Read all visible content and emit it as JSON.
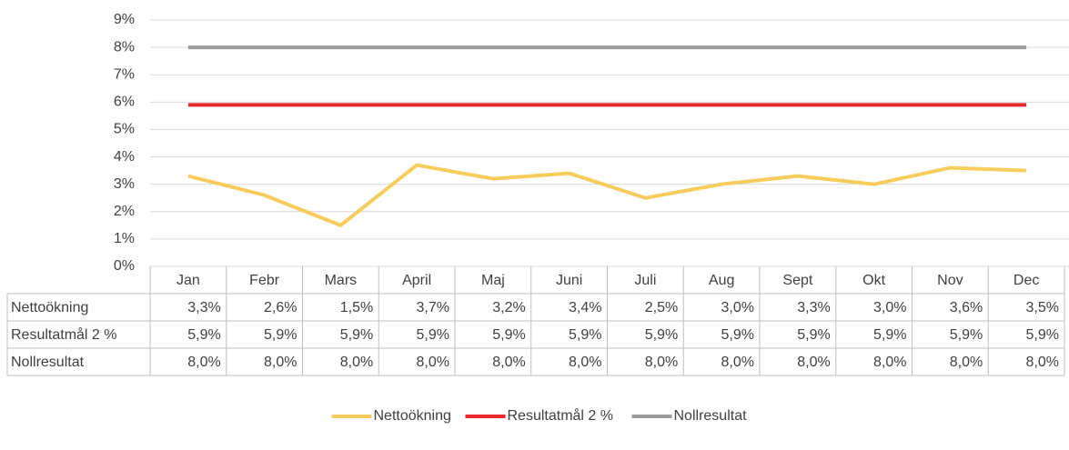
{
  "chart_data": {
    "type": "line",
    "categories": [
      "Jan",
      "Febr",
      "Mars",
      "April",
      "Maj",
      "Juni",
      "Juli",
      "Aug",
      "Sept",
      "Okt",
      "Nov",
      "Dec"
    ],
    "series": [
      {
        "name": "Nettoökning",
        "color": "#f6cd5c",
        "values": [
          3.3,
          2.6,
          1.5,
          3.7,
          3.2,
          3.4,
          2.5,
          3.0,
          3.3,
          3.0,
          3.6,
          3.5
        ],
        "value_labels": [
          "3,3%",
          "2,6%",
          "1,5%",
          "3,7%",
          "3,2%",
          "3,4%",
          "2,5%",
          "3,0%",
          "3,3%",
          "3,0%",
          "3,6%",
          "3,5%"
        ]
      },
      {
        "name": "Resultatmål 2 %",
        "color": "#e8262b",
        "values": [
          5.9,
          5.9,
          5.9,
          5.9,
          5.9,
          5.9,
          5.9,
          5.9,
          5.9,
          5.9,
          5.9,
          5.9
        ],
        "value_labels": [
          "5,9%",
          "5,9%",
          "5,9%",
          "5,9%",
          "5,9%",
          "5,9%",
          "5,9%",
          "5,9%",
          "5,9%",
          "5,9%",
          "5,9%",
          "5,9%"
        ]
      },
      {
        "name": "Nollresultat",
        "color": "#9b9b9b",
        "values": [
          8.0,
          8.0,
          8.0,
          8.0,
          8.0,
          8.0,
          8.0,
          8.0,
          8.0,
          8.0,
          8.0,
          8.0
        ],
        "value_labels": [
          "8,0%",
          "8,0%",
          "8,0%",
          "8,0%",
          "8,0%",
          "8,0%",
          "8,0%",
          "8,0%",
          "8,0%",
          "8,0%",
          "8,0%",
          "8,0%"
        ]
      }
    ],
    "ylim": [
      0,
      9
    ],
    "yticks": [
      {
        "value": 0,
        "label": "0%"
      },
      {
        "value": 1,
        "label": "1%"
      },
      {
        "value": 2,
        "label": "2%"
      },
      {
        "value": 3,
        "label": "3%"
      },
      {
        "value": 4,
        "label": "4%"
      },
      {
        "value": 5,
        "label": "5%"
      },
      {
        "value": 6,
        "label": "6%"
      },
      {
        "value": 7,
        "label": "7%"
      },
      {
        "value": 8,
        "label": "8%"
      },
      {
        "value": 9,
        "label": "9%"
      }
    ],
    "grid": true,
    "legend": "bottom"
  }
}
